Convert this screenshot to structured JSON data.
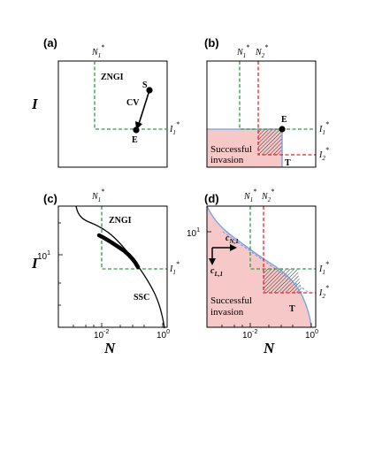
{
  "figure": {
    "axis_labels": {
      "y": "I",
      "x": "N"
    },
    "panels": {
      "a": {
        "label": "(a)",
        "top_label_sym": "N",
        "top_label_sub": "1",
        "top_label_sup": "*",
        "right_label_sym": "I",
        "right_label_sub": "1",
        "right_label_sup": "*",
        "zngi_label": "ZNGI",
        "point_s": "S",
        "point_e": "E",
        "cv_label": "CV"
      },
      "b": {
        "label": "(b)",
        "top1_sym": "N",
        "top1_sub": "1",
        "top1_sup": "*",
        "top2_sym": "N",
        "top2_sub": "2",
        "top2_sup": "*",
        "right1_sym": "I",
        "right1_sub": "1",
        "right1_sup": "*",
        "right2_sym": "I",
        "right2_sub": "2",
        "right2_sup": "*",
        "point_e": "E",
        "region_line1": "Successful",
        "region_line2": "invasion",
        "t_label": "T"
      },
      "c": {
        "label": "(c)",
        "top_label_sym": "N",
        "top_label_sub": "1",
        "top_label_sup": "*",
        "right_label_sym": "I",
        "right_label_sub": "1",
        "right_label_sup": "*",
        "zngi_label": "ZNGI",
        "ssc_label": "SSC",
        "y_tick_base": "10",
        "y_tick_exp": "1",
        "x_tick1_base": "10",
        "x_tick1_exp": "-2",
        "x_tick2_base": "10",
        "x_tick2_exp": "0"
      },
      "d": {
        "label": "(d)",
        "top1_sym": "N",
        "top1_sub": "1",
        "top1_sup": "*",
        "top2_sym": "N",
        "top2_sub": "2",
        "top2_sup": "*",
        "right1_sym": "I",
        "right1_sub": "1",
        "right1_sup": "*",
        "right2_sym": "I",
        "right2_sub": "2",
        "right2_sup": "*",
        "cn_sym": "c",
        "cn_sub": "N,1",
        "cl_sym": "c",
        "cl_sub": "L,1",
        "region_line1": "Successful",
        "region_line2": "invasion",
        "t_label": "T",
        "y_tick_base": "10",
        "y_tick_exp": "1",
        "x_tick1_base": "10",
        "x_tick1_exp": "-2",
        "x_tick2_base": "10",
        "x_tick2_exp": "0"
      }
    },
    "colors": {
      "zngi1": "#2e9a47",
      "zngi2": "#e8242a",
      "shade": "#f7c8c8",
      "boundary": "#6f9fe6",
      "hatch": "#333333",
      "curve": "#000000"
    }
  }
}
